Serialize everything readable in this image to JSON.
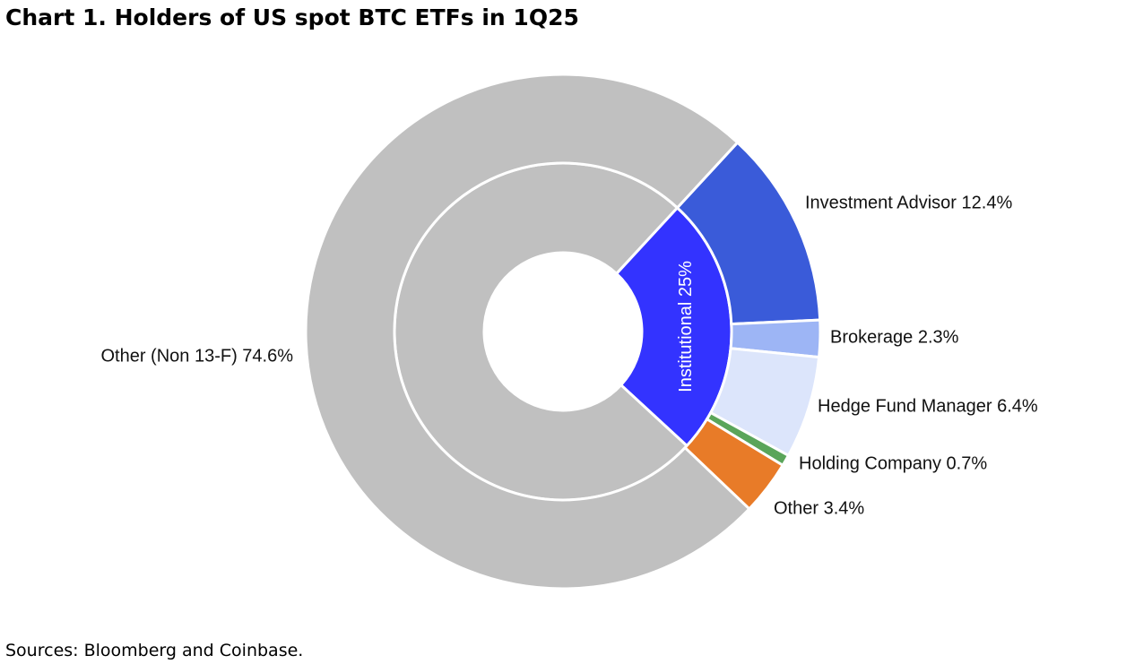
{
  "chart_data": {
    "type": "nested-donut",
    "title": "Chart 1. Holders of US spot BTC ETFs in 1Q25",
    "source": "Sources: Bloomberg and Coinbase.",
    "rings": [
      {
        "categories": [
          "Institutional",
          null
        ],
        "values": [
          25,
          75
        ],
        "value_labels": [
          "Institutional 25%",
          null
        ],
        "colors": [
          "#3333ff",
          "#c0c0c0"
        ]
      },
      {
        "categories": [
          "Investment Advisor",
          "Brokerage",
          "Hedge Fund Manager",
          "Holding Company",
          "Other",
          "Other (Non 13-F)"
        ],
        "values": [
          12.4,
          2.3,
          6.4,
          0.7,
          3.4,
          74.6
        ],
        "value_labels": [
          "Investment Advisor 12.4%",
          "Brokerage 2.3%",
          "Hedge Fund Manager 6.4%",
          "Holding Company 0.7%",
          "Other 3.4%",
          "Other (Non 13-F) 74.6%"
        ],
        "colors": [
          "#3a5bd9",
          "#9db5f5",
          "#dce5fb",
          "#5aa55a",
          "#e87b28",
          "#c0c0c0"
        ]
      }
    ]
  }
}
